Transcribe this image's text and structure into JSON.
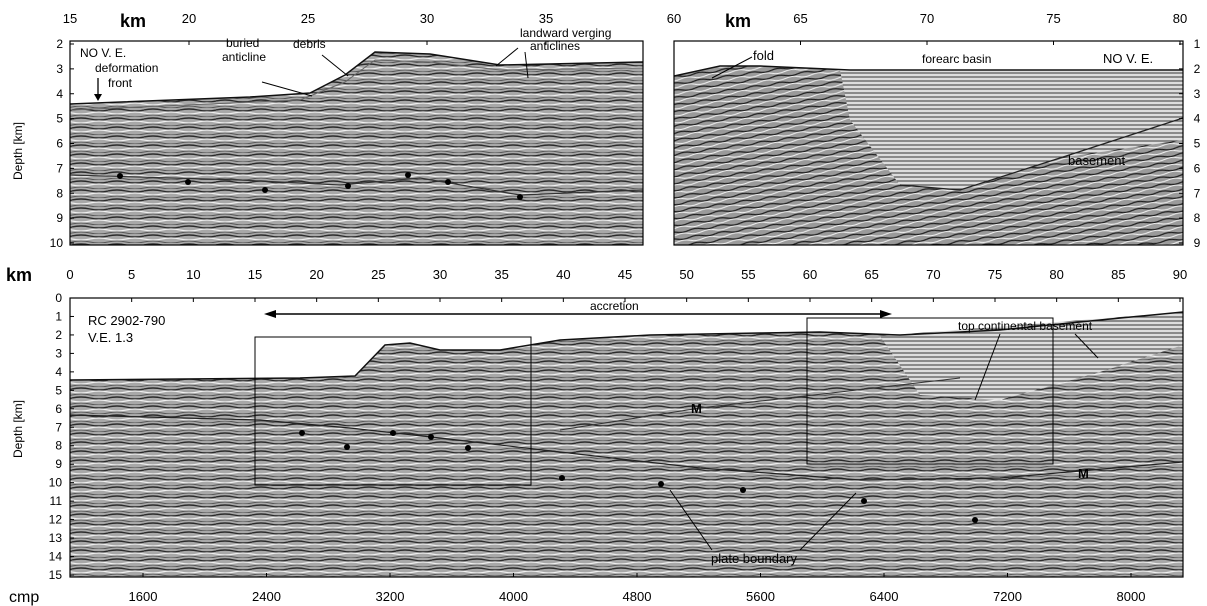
{
  "top_left": {
    "unit": "km",
    "km_ticks": [
      "15",
      "20",
      "25",
      "30",
      "35"
    ],
    "ylabel": "Depth [km]",
    "depth_ticks": [
      "2",
      "3",
      "4",
      "5",
      "6",
      "7",
      "8",
      "9",
      "10"
    ],
    "labels": {
      "ve": "NO V. E.",
      "deformation_front_1": "deformation",
      "deformation_front_2": "front",
      "buried_1": "buried",
      "buried_2": "anticline",
      "debris": "debris",
      "landward_1": "landward verging",
      "landward_2": "anticlines"
    }
  },
  "top_right": {
    "unit": "km",
    "km_ticks": [
      "60",
      "65",
      "70",
      "75",
      "80"
    ],
    "depth_ticks": [
      "1",
      "2",
      "3",
      "4",
      "5",
      "6",
      "7",
      "8",
      "9"
    ],
    "labels": {
      "fold": "fold",
      "forearc": "forearc basin",
      "ve": "NO V. E.",
      "basement": "basement"
    }
  },
  "bottom": {
    "unit": "km",
    "km_ticks": [
      "0",
      "5",
      "10",
      "15",
      "20",
      "25",
      "30",
      "35",
      "40",
      "45",
      "50",
      "55",
      "60",
      "65",
      "70",
      "75",
      "80",
      "85",
      "90"
    ],
    "ylabel": "Depth [km]",
    "depth_ticks": [
      "0",
      "1",
      "2",
      "3",
      "4",
      "5",
      "6",
      "7",
      "8",
      "9",
      "10",
      "11",
      "12",
      "13",
      "14",
      "15"
    ],
    "cmp_label": "cmp",
    "cmp_ticks": [
      "1600",
      "2400",
      "3200",
      "4000",
      "4800",
      "5600",
      "6400",
      "7200",
      "8000"
    ],
    "labels": {
      "line_id": "RC 2902-790",
      "ve": "V.E. 1.3",
      "accretion": "accretion",
      "top_basement": "top continental basement",
      "moho_1": "M",
      "moho_2": "M",
      "plate_boundary": "plate boundary"
    }
  },
  "colors": {
    "ink": "#000000",
    "paper": "#ffffff",
    "seismic_mid": "#8a8a8a"
  }
}
